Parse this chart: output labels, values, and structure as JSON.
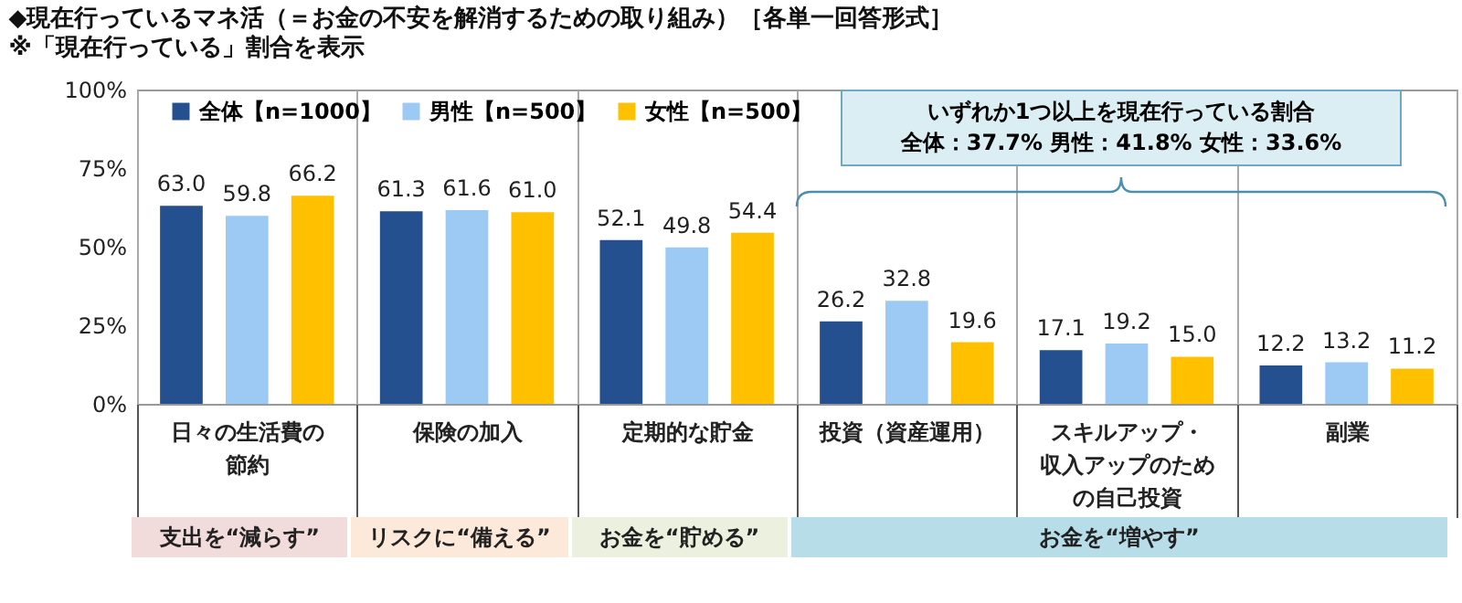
{
  "chart_data": {
    "type": "bar",
    "title": "◆現在行っているマネ活（＝お金の不安を解消するための取り組み）［各単一回答形式］",
    "subtitle": "※「現在行っている」割合を表示",
    "categories": [
      "日々の生活費の節約",
      "保険の加入",
      "定期的な貯金",
      "投資（資産運用）",
      "スキルアップ・収入アップのための自己投資",
      "副業"
    ],
    "series": [
      {
        "name": "全体【n=1000】",
        "color": "#24508f",
        "values": [
          63.0,
          61.3,
          52.1,
          26.2,
          17.1,
          12.2
        ],
        "value_labels": [
          "63.0",
          "61.3",
          "52.1",
          "26.2",
          "17.1",
          "12.2"
        ]
      },
      {
        "name": "男性【n=500】",
        "color": "#9dcaf5",
        "values": [
          59.8,
          61.6,
          49.8,
          32.8,
          19.2,
          13.2
        ],
        "value_labels": [
          "59.8",
          "61.6",
          "49.8",
          "32.8",
          "19.2",
          "13.2"
        ]
      },
      {
        "name": "女性【n=500】",
        "color": "#ffc000",
        "values": [
          66.2,
          61.0,
          54.4,
          19.6,
          15.0,
          11.2
        ],
        "value_labels": [
          "66.2",
          "61.0",
          "54.4",
          "19.6",
          "15.0",
          "11.2"
        ]
      }
    ],
    "ylim": [
      0,
      100
    ],
    "yticks": [
      {
        "value": 0,
        "label": "0%"
      },
      {
        "value": 25,
        "label": "25%"
      },
      {
        "value": 50,
        "label": "50%"
      },
      {
        "value": 75,
        "label": "75%"
      },
      {
        "value": 100,
        "label": "100%"
      }
    ],
    "grid": "x",
    "legend": "top left",
    "annotations": [
      "いずれか1つ以上を現在行っている割合",
      "全体：37.7%  男性：41.8%  女性：33.6%",
      "支出を“減らす”",
      "リスクに“備える”",
      "お金を“貯める”",
      "お金を“増やす”"
    ]
  }
}
